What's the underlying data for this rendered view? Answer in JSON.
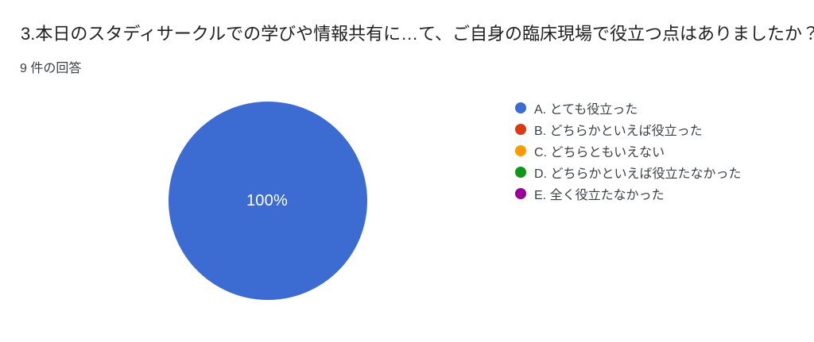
{
  "header": {
    "title": "3.本日のスタディサークルでの学びや情報共有に…て、ご自身の臨床現場で役立つ点はありましたか？",
    "response_count": "9 件の回答"
  },
  "chart_data": {
    "type": "pie",
    "title": "3.本日のスタディサークルでの学びや情報共有に…て、ご自身の臨床現場で役立つ点はありましたか？",
    "subtitle": "9 件の回答",
    "responses_total": 9,
    "categories": [
      "A. とても役立った",
      "B. どちらかといえば役立った",
      "C. どちらともいえない",
      "D. どちらかといえば役立たなかった",
      "E. 全く役立たなかった"
    ],
    "values_percent": [
      100,
      0,
      0,
      0,
      0
    ],
    "colors": [
      "#3c6bd1",
      "#dc3912",
      "#ff9900",
      "#109618",
      "#990099"
    ],
    "slice_labels": [
      "100%"
    ],
    "legend_position": "right",
    "label_color": "#ffffff"
  }
}
